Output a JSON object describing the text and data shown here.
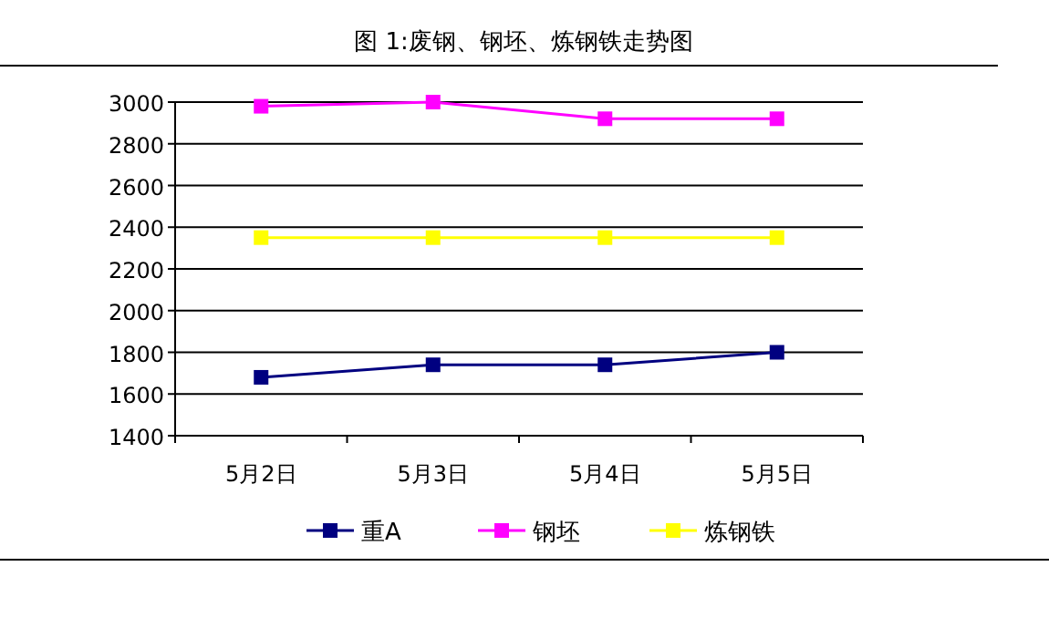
{
  "chart_data": {
    "type": "line",
    "title": "图 1:废钢、钢坯、炼钢铁走势图",
    "categories": [
      "5月2日",
      "5月3日",
      "5月4日",
      "5月5日"
    ],
    "series": [
      {
        "name": "重A",
        "color": "#000080",
        "values": [
          1680,
          1740,
          1740,
          1800
        ]
      },
      {
        "name": "钢坯",
        "color": "#ff00ff",
        "values": [
          2980,
          3000,
          2920,
          2920
        ]
      },
      {
        "name": "炼钢铁",
        "color": "#ffff00",
        "values": [
          2350,
          2350,
          2350,
          2350
        ]
      }
    ],
    "ylim": [
      1400,
      3000
    ],
    "yticks": [
      1400,
      1600,
      1800,
      2000,
      2200,
      2400,
      2600,
      2800,
      3000
    ],
    "grid": "y",
    "legend": "bottom",
    "marker": "square",
    "line_style": "solid"
  }
}
